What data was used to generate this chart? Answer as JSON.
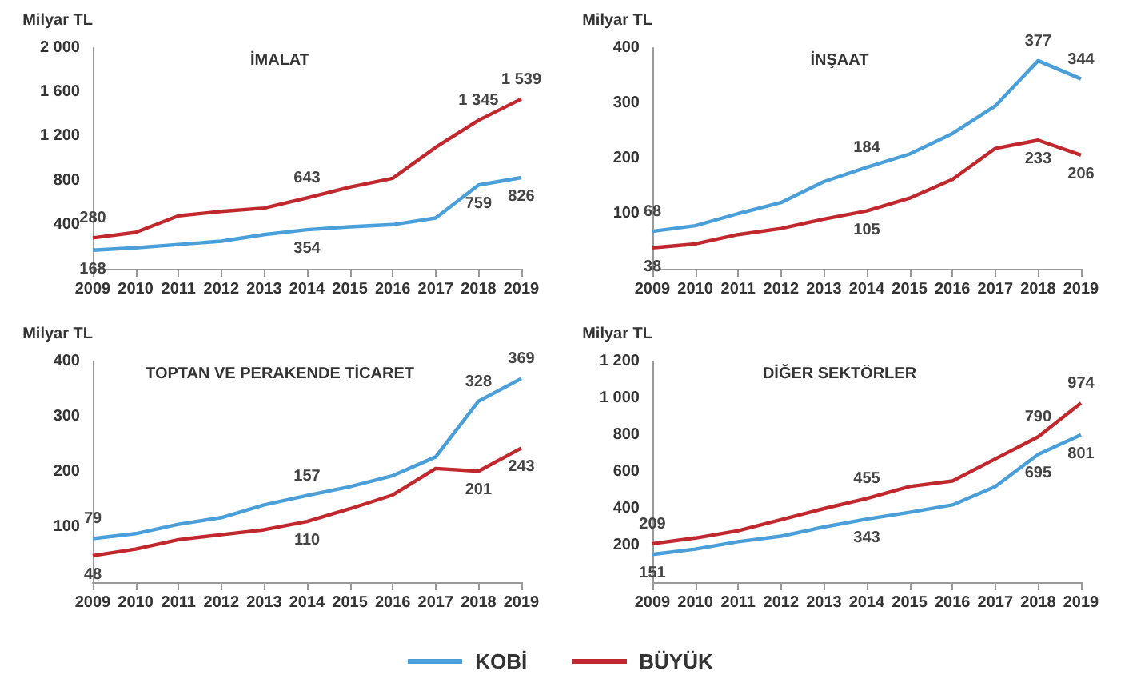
{
  "chart_data": [
    {
      "type": "line",
      "title": "İMALAT",
      "ylabel": "Milyar TL",
      "categories": [
        "2009",
        "2010",
        "2011",
        "2012",
        "2013",
        "2014",
        "2015",
        "2016",
        "2017",
        "2018",
        "2019"
      ],
      "ylim": [
        0,
        2000
      ],
      "yticks": [
        {
          "value": 400,
          "label": "400"
        },
        {
          "value": 800,
          "label": "800"
        },
        {
          "value": 1200,
          "label": "1 200"
        },
        {
          "value": 1600,
          "label": "1 600"
        },
        {
          "value": 2000,
          "label": "2 000"
        }
      ],
      "legend": "bottom",
      "series": [
        {
          "name": "KOBİ",
          "color": "#4a9fd8",
          "values": [
            168,
            190,
            220,
            250,
            310,
            354,
            380,
            400,
            460,
            759,
            826
          ],
          "value_labels": [
            "168",
            null,
            null,
            null,
            null,
            "354",
            null,
            null,
            null,
            "759",
            "826"
          ]
        },
        {
          "name": "BÜYÜK",
          "color": "#c0282d",
          "values": [
            280,
            330,
            480,
            520,
            550,
            643,
            740,
            820,
            1100,
            1345,
            1539
          ],
          "value_labels": [
            "280",
            null,
            null,
            null,
            null,
            "643",
            null,
            null,
            null,
            "1 345",
            "1 539"
          ]
        }
      ]
    },
    {
      "type": "line",
      "title": "İNŞAAT",
      "ylabel": "Milyar TL",
      "categories": [
        "2009",
        "2010",
        "2011",
        "2012",
        "2013",
        "2014",
        "2015",
        "2016",
        "2017",
        "2018",
        "2019"
      ],
      "ylim": [
        0,
        400
      ],
      "yticks": [
        100,
        200,
        300,
        400
      ],
      "series": [
        {
          "color": "#4a9fd8",
          "values": [
            68,
            78,
            100,
            120,
            158,
            184,
            208,
            245,
            295,
            377,
            344
          ],
          "value_labels": [
            "68",
            null,
            null,
            null,
            null,
            "184",
            null,
            null,
            null,
            "377",
            "344"
          ]
        },
        {
          "color": "#c0282d",
          "values": [
            38,
            45,
            62,
            73,
            90,
            105,
            128,
            162,
            218,
            233,
            206
          ],
          "value_labels": [
            "38",
            null,
            null,
            null,
            null,
            "105",
            null,
            null,
            null,
            "233",
            "206"
          ]
        }
      ]
    },
    {
      "type": "line",
      "title": "TOPTAN VE PERAKENDE TİCARET",
      "ylabel": "Milyar TL",
      "categories": [
        "2009",
        "2010",
        "2011",
        "2012",
        "2013",
        "2014",
        "2015",
        "2016",
        "2017",
        "2018",
        "2019"
      ],
      "ylim": [
        0,
        400
      ],
      "yticks": [
        100,
        200,
        300,
        400
      ],
      "series": [
        {
          "color": "#4a9fd8",
          "values": [
            79,
            88,
            105,
            117,
            140,
            157,
            173,
            193,
            227,
            328,
            369
          ],
          "value_labels": [
            "79",
            null,
            null,
            null,
            null,
            "157",
            null,
            null,
            null,
            "328",
            "369"
          ]
        },
        {
          "color": "#c0282d",
          "values": [
            48,
            60,
            77,
            86,
            95,
            110,
            133,
            158,
            206,
            201,
            243
          ],
          "value_labels": [
            "48",
            null,
            null,
            null,
            null,
            "110",
            null,
            null,
            null,
            "201",
            "243"
          ]
        }
      ]
    },
    {
      "type": "line",
      "title": "DİĞER SEKTÖRLER",
      "ylabel": "Milyar TL",
      "categories": [
        "2009",
        "2010",
        "2011",
        "2012",
        "2013",
        "2014",
        "2015",
        "2016",
        "2017",
        "2018",
        "2019"
      ],
      "ylim": [
        0,
        1200
      ],
      "yticks": [
        {
          "value": 200,
          "label": "200"
        },
        {
          "value": 400,
          "label": "400"
        },
        {
          "value": 600,
          "label": "600"
        },
        {
          "value": 800,
          "label": "800"
        },
        {
          "value": 1000,
          "label": "1 000"
        },
        {
          "value": 1200,
          "label": "1 200"
        }
      ],
      "series": [
        {
          "color": "#4a9fd8",
          "values": [
            151,
            180,
            220,
            250,
            300,
            343,
            380,
            420,
            520,
            695,
            801
          ],
          "value_labels": [
            "151",
            null,
            null,
            null,
            null,
            "343",
            null,
            null,
            null,
            "695",
            "801"
          ]
        },
        {
          "color": "#c0282d",
          "values": [
            209,
            240,
            280,
            340,
            400,
            455,
            520,
            550,
            670,
            790,
            974
          ],
          "value_labels": [
            "209",
            null,
            null,
            null,
            null,
            "455",
            null,
            null,
            null,
            "790",
            "974"
          ]
        }
      ]
    }
  ]
}
